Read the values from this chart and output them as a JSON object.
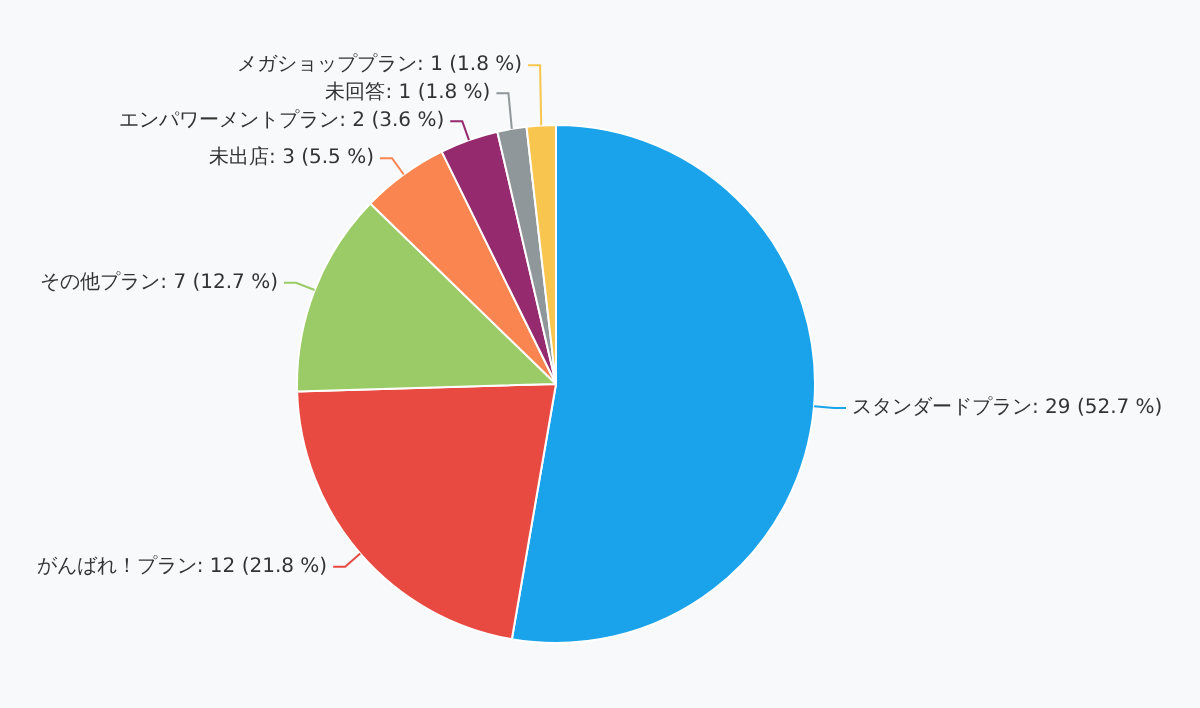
{
  "chart_data": {
    "type": "pie",
    "categories": [
      "スタンダードプラン",
      "がんばれ！プラン",
      "その他プラン",
      "未出店",
      "エンパワーメントプラン",
      "未回答",
      "メガショッププラン"
    ],
    "values": [
      29,
      12,
      7,
      3,
      2,
      1,
      1
    ],
    "colors": [
      "#1aa3ea",
      "#e84a42",
      "#9bcb66",
      "#fb8550",
      "#962a6e",
      "#8f979b",
      "#f8c54f"
    ],
    "value_labels": [
      "29 (52.7 %)",
      "12 (21.8 %)",
      "7 (12.7 %)",
      "3 (5.5 %)",
      "2 (3.6 %)",
      "1 (1.8 %)",
      "1 (1.8 %)"
    ]
  }
}
